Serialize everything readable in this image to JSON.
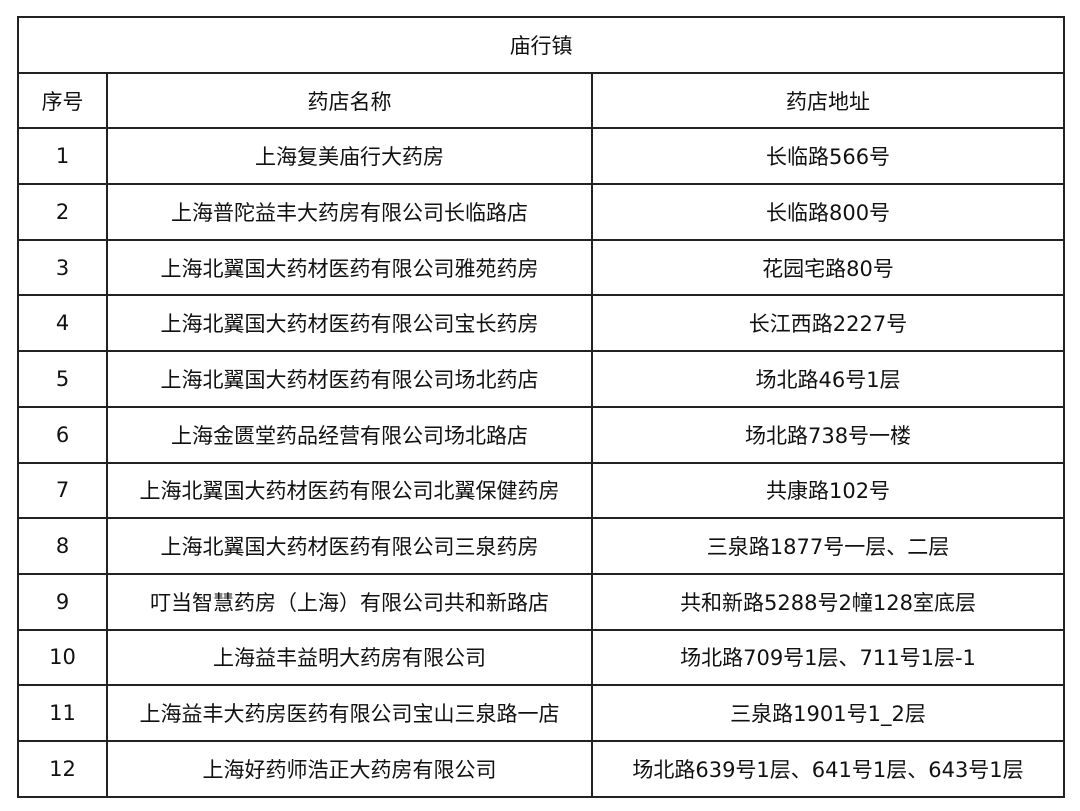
{
  "title": "庙行镇",
  "headers": [
    "序号",
    "药店名称",
    "药店地址"
  ],
  "rows": [
    [
      "1",
      "上海复美庙行大药房",
      "长临路566号"
    ],
    [
      "2",
      "上海普陀益丰大药房有限公司长临路店",
      "长临路800号"
    ],
    [
      "3",
      "上海北翼国大药材医药有限公司雅苑药房",
      "花园宅路80号"
    ],
    [
      "4",
      "上海北翼国大药材医药有限公司宝长药房",
      "长江西路2227号"
    ],
    [
      "5",
      "上海北翼国大药材医药有限公司场北药店",
      "场北路46号1层"
    ],
    [
      "6",
      "上海金匮堂药品经营有限公司场北路店",
      "场北路738号一楼"
    ],
    [
      "7",
      "上海北翼国大药材医药有限公司北翼保健药房",
      "共康路102号"
    ],
    [
      "8",
      "上海北翼国大药材医药有限公司三泉药房",
      "三泉路1877号一层、二层"
    ],
    [
      "9",
      "叮当智慧药房（上海）有限公司共和新路店",
      "共和新路5288号2幢128室底层"
    ],
    [
      "10",
      "上海益丰益明大药房有限公司",
      "场北路709号1层、711号1层-1"
    ],
    [
      "11",
      "上海益丰大药房医药有限公司宝山三泉路一店",
      "三泉路1901号1_2层"
    ],
    [
      "12",
      "上海好药师浩正大药房有限公司",
      "场北路639号1层、641号1层、643号1层"
    ]
  ]
}
